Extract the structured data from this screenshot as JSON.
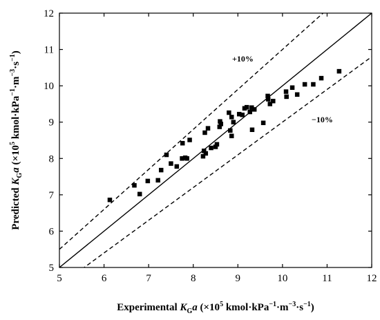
{
  "chart_data": {
    "type": "scatter",
    "xlim": [
      5,
      12
    ],
    "ylim": [
      5,
      12
    ],
    "x_ticks": [
      "5",
      "6",
      "7",
      "8",
      "9",
      "10",
      "11",
      "12"
    ],
    "y_ticks": [
      "5",
      "6",
      "7",
      "8",
      "9",
      "10",
      "11",
      "12"
    ],
    "grid": false,
    "xlabel": {
      "prefix": "Experimental ",
      "var": "K",
      "sub": "G",
      "var2": "a",
      "open": " (×10",
      "exp": "5",
      "unit1": " kmol·kPa",
      "exp2": "−1",
      "unit2": "·m",
      "exp3": "−3",
      "unit3": "·s",
      "exp4": "−1",
      "close": ")"
    },
    "ylabel": {
      "prefix": "Predicted ",
      "var": "K",
      "sub": "G",
      "var2": "a",
      "open": " (×10",
      "exp": "5",
      "unit1": " kmol·kPa",
      "exp2": "−1",
      "unit2": "·m",
      "exp3": "−3",
      "unit3": "·s",
      "exp4": "−1",
      "close": ")"
    },
    "reference_lines": [
      {
        "label": "",
        "style": "solid",
        "slope": 1.0
      },
      {
        "label": "+10%",
        "style": "dashed",
        "slope": 1.1
      },
      {
        "label": "−10%",
        "style": "dashed",
        "slope": 0.9
      }
    ],
    "series": [
      {
        "marker": "square",
        "color": "#000000",
        "points": [
          [
            6.13,
            6.86
          ],
          [
            6.68,
            7.26
          ],
          [
            6.8,
            7.02
          ],
          [
            6.98,
            7.38
          ],
          [
            7.21,
            7.4
          ],
          [
            7.28,
            7.68
          ],
          [
            7.4,
            8.1
          ],
          [
            7.5,
            7.86
          ],
          [
            7.63,
            7.78
          ],
          [
            7.75,
            8.0
          ],
          [
            7.76,
            8.42
          ],
          [
            7.82,
            8.02
          ],
          [
            7.86,
            8.0
          ],
          [
            7.92,
            8.51
          ],
          [
            8.22,
            8.06
          ],
          [
            8.24,
            8.21
          ],
          [
            8.26,
            8.71
          ],
          [
            8.28,
            8.14
          ],
          [
            8.33,
            8.83
          ],
          [
            8.4,
            8.29
          ],
          [
            8.5,
            8.32
          ],
          [
            8.53,
            8.39
          ],
          [
            8.59,
            8.87
          ],
          [
            8.6,
            9.02
          ],
          [
            8.62,
            8.95
          ],
          [
            8.8,
            9.26
          ],
          [
            8.83,
            8.77
          ],
          [
            8.86,
            8.62
          ],
          [
            8.86,
            9.14
          ],
          [
            8.9,
            9.0
          ],
          [
            9.03,
            9.22
          ],
          [
            9.1,
            9.2
          ],
          [
            9.15,
            9.38
          ],
          [
            9.2,
            9.41
          ],
          [
            9.27,
            9.28
          ],
          [
            9.31,
            9.4
          ],
          [
            9.32,
            8.79
          ],
          [
            9.37,
            9.35
          ],
          [
            9.57,
            8.98
          ],
          [
            9.67,
            9.72
          ],
          [
            9.68,
            9.63
          ],
          [
            9.72,
            9.5
          ],
          [
            9.79,
            9.58
          ],
          [
            10.08,
            9.84
          ],
          [
            10.09,
            9.7
          ],
          [
            10.22,
            9.95
          ],
          [
            10.33,
            9.76
          ],
          [
            10.5,
            10.04
          ],
          [
            10.69,
            10.04
          ],
          [
            10.87,
            10.21
          ],
          [
            11.27,
            10.4
          ]
        ]
      }
    ]
  }
}
